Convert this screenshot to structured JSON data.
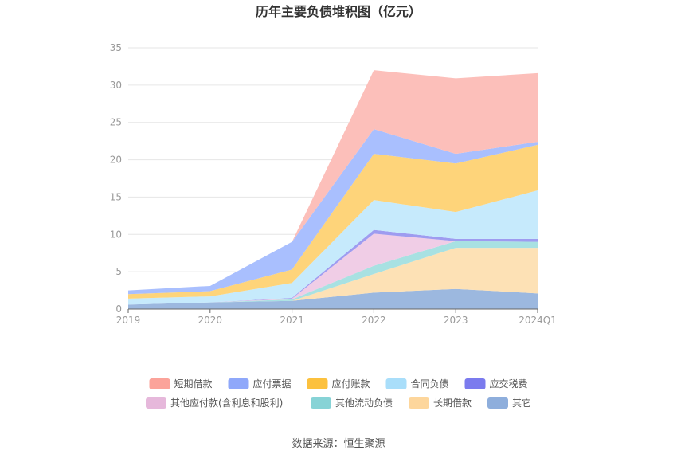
{
  "chart_data": {
    "type": "area",
    "stacked": true,
    "title": "历年主要负债堆积图（亿元）",
    "categories": [
      "2019",
      "2020",
      "2021",
      "2022",
      "2023",
      "2024Q1"
    ],
    "ylim": [
      0,
      35
    ],
    "yticks": [
      0,
      5,
      10,
      15,
      20,
      25,
      30,
      35
    ],
    "grid": true,
    "legend_position": "bottom",
    "series": [
      {
        "name": "其它",
        "color": "#9cb8df",
        "values": [
          0.6,
          0.9,
          1.1,
          2.2,
          2.7,
          2.1
        ]
      },
      {
        "name": "长期借款",
        "color": "#fde1b5",
        "values": [
          0.0,
          0.0,
          0.0,
          2.5,
          5.5,
          6.1
        ]
      },
      {
        "name": "其他流动负债",
        "color": "#a8e1e2",
        "values": [
          0.0,
          0.0,
          0.2,
          1.1,
          0.9,
          0.8
        ]
      },
      {
        "name": "其他应付款(含利息和股利)",
        "color": "#f0cde6",
        "values": [
          0.0,
          0.0,
          0.1,
          4.3,
          0.0,
          0.0
        ]
      },
      {
        "name": "应交税费",
        "color": "#9e9cf0",
        "values": [
          0.0,
          0.0,
          0.1,
          0.5,
          0.3,
          0.4
        ]
      },
      {
        "name": "合同负债",
        "color": "#c6eafc",
        "values": [
          0.8,
          0.8,
          2.0,
          4.0,
          3.6,
          6.5
        ]
      },
      {
        "name": "应付账款",
        "color": "#fed47a",
        "values": [
          0.6,
          0.7,
          1.8,
          6.2,
          6.5,
          6.1
        ]
      },
      {
        "name": "应付票据",
        "color": "#a9bffe",
        "values": [
          0.5,
          0.7,
          3.7,
          3.3,
          1.3,
          0.4
        ]
      },
      {
        "name": "短期借款",
        "color": "#fcbfba",
        "values": [
          0.0,
          0.0,
          0.0,
          7.9,
          10.1,
          9.2
        ]
      }
    ],
    "legend": [
      {
        "name": "短期借款",
        "swatch": "#fba39a"
      },
      {
        "name": "应付票据",
        "swatch": "#8fa8fa"
      },
      {
        "name": "应付账款",
        "swatch": "#fcc13e"
      },
      {
        "name": "合同负债",
        "swatch": "#a9defa"
      },
      {
        "name": "应交税费",
        "swatch": "#7b7bee"
      },
      {
        "name": "其他应付款(含利息和股利)",
        "swatch": "#e6b8db"
      },
      {
        "name": "其他流动负债",
        "swatch": "#87d3d6"
      },
      {
        "name": "长期借款",
        "swatch": "#fdd69c"
      },
      {
        "name": "其它",
        "swatch": "#8eaedc"
      }
    ]
  },
  "source": "数据来源：恒生聚源"
}
